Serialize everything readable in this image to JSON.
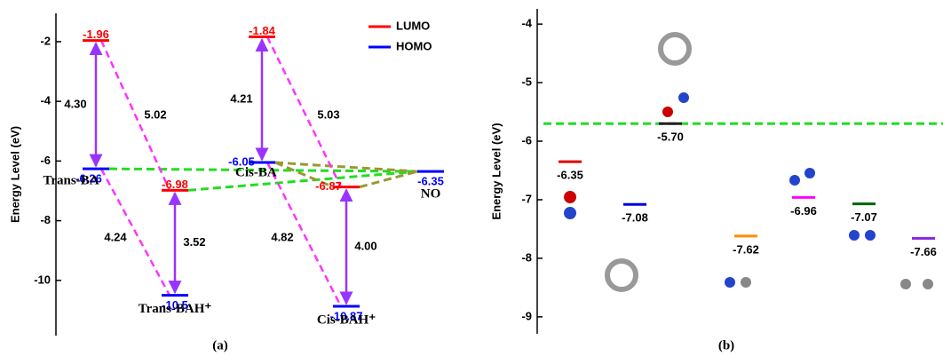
{
  "chart_data": [
    {
      "type": "energy-level",
      "ylabel": "Energy Level (eV)",
      "panel_label": "(a)",
      "ylim": [
        -11.85,
        -1.05
      ],
      "yticks": [
        -2,
        -4,
        -6,
        -8,
        -10
      ],
      "categories": [
        "Trans-BA",
        "Trans-BAH⁺",
        "Cis-BA",
        "Cis-BAH⁺",
        "NO"
      ],
      "series": [
        {
          "name": "LUMO",
          "color": "#ff0000",
          "values": [
            -1.96,
            -6.98,
            -1.84,
            -6.87,
            null
          ]
        },
        {
          "name": "HOMO",
          "color": "#0000ff",
          "values": [
            -6.26,
            -10.5,
            -6.05,
            -10.87,
            -6.35
          ]
        }
      ],
      "gaps": {
        "values": [
          4.3,
          3.52,
          4.21,
          4.0
        ],
        "value_labels": [
          "4.30",
          "3.52",
          "4.21",
          "4.00"
        ],
        "color": "#9933ff"
      },
      "transitions": {
        "values": [
          5.02,
          4.24,
          5.03,
          4.82
        ],
        "color": "#ff33ff"
      },
      "legend": "upper right"
    },
    {
      "type": "level-list",
      "ylabel": "Energy Level (eV)",
      "panel_label": "(b)",
      "ylim": [
        -9.29,
        -3.74
      ],
      "yticks": [
        -4,
        -5,
        -6,
        -7,
        -8,
        -9
      ],
      "values": [
        -6.35,
        -5.7,
        -7.08,
        -7.62,
        -6.96,
        -7.07,
        -7.66
      ],
      "value_labels": [
        "-6.35",
        "-5.70",
        "-7.08",
        "-7.62",
        "-6.96",
        "-7.07",
        "-7.66"
      ],
      "colors": [
        "#e00000",
        "#202020",
        "#0000e0",
        "#ff8c00",
        "#ff00ff",
        "#006400",
        "#8a2be2"
      ],
      "reference_color": "#22dd22"
    }
  ]
}
